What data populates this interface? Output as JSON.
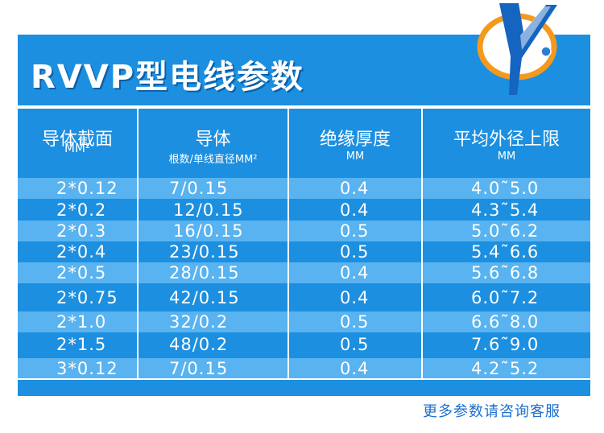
{
  "title": "RVVP型电线参数",
  "header": {
    "col1": {
      "main": "导体截面",
      "sub": "MM²"
    },
    "col2": {
      "main": "导体",
      "sub": "根数/单线直径MM²"
    },
    "col3": {
      "main": "绝缘厚度",
      "sub": "MM"
    },
    "col4": {
      "main": "平均外径上限",
      "sub": "MM"
    }
  },
  "rows": [
    {
      "section": "2*0.12",
      "conductor": "7/0.15",
      "insulation": "0.4",
      "diameter": "4.0˜5.0"
    },
    {
      "section": "2*0.2",
      "conductor": "12/0.15",
      "insulation": "0.4",
      "diameter": "4.3˜5.4"
    },
    {
      "section": "2*0.3",
      "conductor": "16/0.15",
      "insulation": "0.5",
      "diameter": "5.0˜6.2"
    },
    {
      "section": "2*0.4",
      "conductor": "23/0.15",
      "insulation": "0.5",
      "diameter": "5.4˜6.6"
    },
    {
      "section": "2*0.5",
      "conductor": "28/0.15",
      "insulation": "0.4",
      "diameter": "5.6˜6.8"
    },
    {
      "section": "2*0.75",
      "conductor": "42/0.15",
      "insulation": "0.4",
      "diameter": "6.0˜7.2"
    },
    {
      "section": "2*1.0",
      "conductor": "32/0.2",
      "insulation": "0.5",
      "diameter": "6.6˜8.0"
    },
    {
      "section": "2*1.5",
      "conductor": "48/0.2",
      "insulation": "0.5",
      "diameter": "7.6˜9.0"
    },
    {
      "section": "3*0.12",
      "conductor": "7/0.15",
      "insulation": "0.4",
      "diameter": "4.2˜5.2"
    }
  ],
  "footer_note": "更多参数请咨询客服",
  "logo_icon": "brand-logo-icon",
  "colors": {
    "panel": "#1c8fe0",
    "row_light": "#58b3f0",
    "footer_text": "#1c6fcf",
    "logo_orange": "#f39a1e",
    "logo_blue": "#1565c0"
  }
}
